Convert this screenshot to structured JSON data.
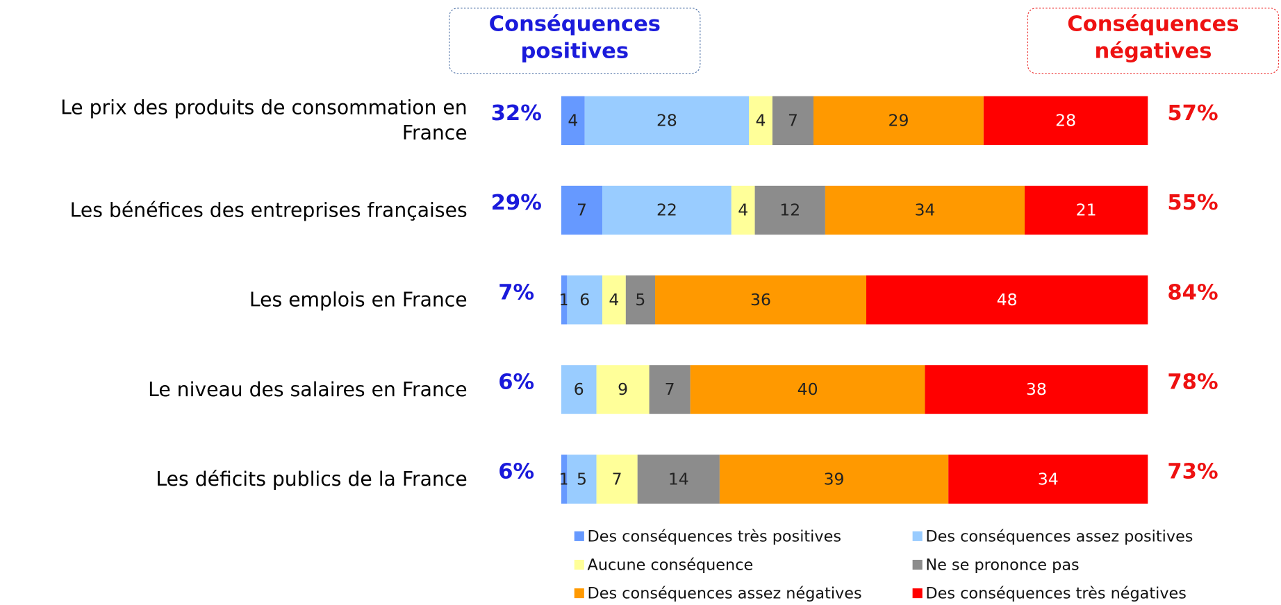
{
  "chart_data": {
    "type": "stacked-bar-horizontal",
    "header_positive": "Conséquences positives",
    "header_negative": "Conséquences négatives",
    "categories": [
      "Le prix des produits de consommation en France",
      "Les bénéfices des entreprises françaises",
      "Les emplois en France",
      "Le niveau des salaires en France",
      "Les déficits publics de la France"
    ],
    "positive_totals": [
      "32%",
      "29%",
      "7%",
      "6%",
      "6%"
    ],
    "negative_totals": [
      "57%",
      "55%",
      "84%",
      "78%",
      "73%"
    ],
    "xlim": [
      0,
      100
    ],
    "series": [
      {
        "name": "Des conséquences très positives",
        "color": "#6699ff",
        "values": [
          4,
          7,
          1,
          null,
          1
        ]
      },
      {
        "name": "Des conséquences assez positives",
        "color": "#99ccff",
        "values": [
          28,
          22,
          6,
          6,
          5
        ]
      },
      {
        "name": "Aucune conséquence",
        "color": "#ffff99",
        "values": [
          4,
          4,
          4,
          9,
          7
        ]
      },
      {
        "name": "Ne se prononce pas",
        "color": "#8c8c8c",
        "values": [
          7,
          12,
          5,
          7,
          14
        ]
      },
      {
        "name": "Des conséquences assez négatives",
        "color": "#ff9900",
        "values": [
          29,
          34,
          36,
          40,
          39
        ]
      },
      {
        "name": "Des conséquences très négatives",
        "color": "#ff0000",
        "values": [
          28,
          21,
          48,
          38,
          34
        ]
      }
    ]
  }
}
